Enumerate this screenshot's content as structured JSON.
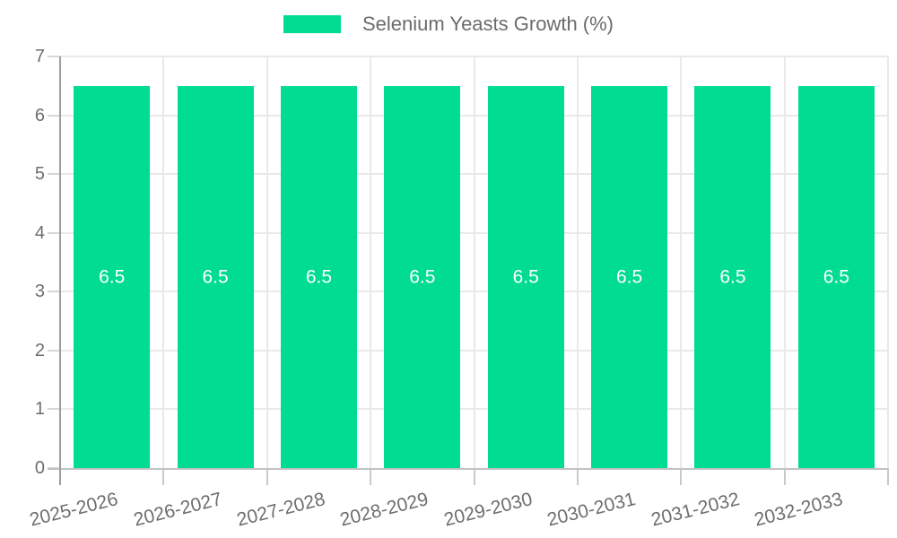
{
  "legend": {
    "label": "Selenium Yeasts Growth (%)"
  },
  "colors": {
    "bar": "#00dc92",
    "bar_value_text": "#ffffff",
    "tick_text": "#6e6e6e",
    "legend_text": "#6b6b6b",
    "grid": "#e9e9e9",
    "y_axis_line": "#9e9e9e",
    "x_axis_line": "#c2c2c2",
    "background": "#ffffff"
  },
  "chart_data": {
    "type": "bar",
    "title": "",
    "xlabel": "",
    "ylabel": "",
    "categories": [
      "2025-2026",
      "2026-2027",
      "2027-2028",
      "2028-2029",
      "2029-2030",
      "2030-2031",
      "2031-2032",
      "2032-2033"
    ],
    "series": [
      {
        "name": "Selenium Yeasts Growth (%)",
        "values": [
          6.5,
          6.5,
          6.5,
          6.5,
          6.5,
          6.5,
          6.5,
          6.5
        ],
        "color": "#00dc92"
      }
    ],
    "value_labels": [
      "6.5",
      "6.5",
      "6.5",
      "6.5",
      "6.5",
      "6.5",
      "6.5",
      "6.5"
    ],
    "value_labels_position": "center-inside",
    "ylim": [
      0,
      7
    ],
    "ytick_labels": [
      "0",
      "1",
      "2",
      "3",
      "4",
      "5",
      "6",
      "7"
    ],
    "ytick_step": 1,
    "grid": true,
    "legend_position": "top-center",
    "x_label_rotation_deg": -14
  }
}
